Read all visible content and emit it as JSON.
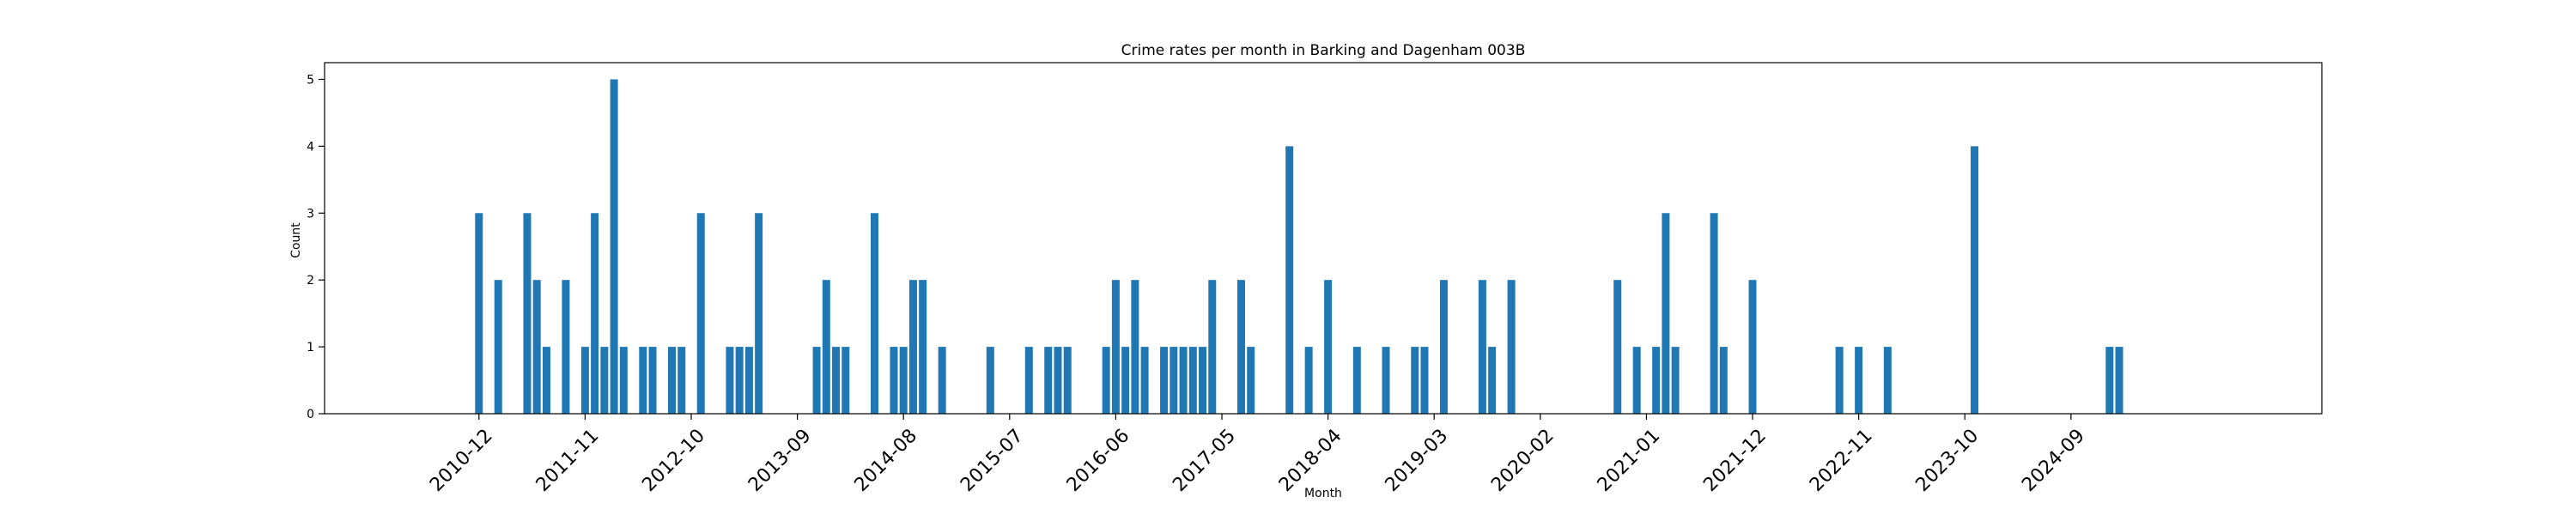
{
  "chart_data": {
    "type": "bar",
    "title": "Crime rates per month in Barking and Dagenham 003B",
    "xlabel": "Month",
    "ylabel": "Count",
    "ylim": [
      0,
      5.25
    ],
    "yticks": [
      0,
      1,
      2,
      3,
      4,
      5
    ],
    "xlim": [
      "2009-08",
      "2026-11"
    ],
    "xticks": [
      "2010-12",
      "2011-11",
      "2012-10",
      "2013-09",
      "2014-08",
      "2015-07",
      "2016-06",
      "2017-05",
      "2018-04",
      "2019-03",
      "2020-02",
      "2021-01",
      "2021-12",
      "2022-11",
      "2023-10",
      "2024-09"
    ],
    "bar_color": "#1f77b4",
    "grid": false,
    "legend": "none",
    "x": [
      "2010-12",
      "2011-02",
      "2011-05",
      "2011-06",
      "2011-07",
      "2011-09",
      "2011-11",
      "2011-12",
      "2012-01",
      "2012-02",
      "2012-03",
      "2012-05",
      "2012-06",
      "2012-08",
      "2012-09",
      "2012-11",
      "2013-02",
      "2013-03",
      "2013-04",
      "2013-05",
      "2013-11",
      "2013-12",
      "2014-01",
      "2014-02",
      "2014-05",
      "2014-07",
      "2014-08",
      "2014-09",
      "2014-10",
      "2014-12",
      "2015-05",
      "2015-09",
      "2015-11",
      "2015-12",
      "2016-01",
      "2016-05",
      "2016-06",
      "2016-07",
      "2016-08",
      "2016-09",
      "2016-11",
      "2016-12",
      "2017-01",
      "2017-02",
      "2017-03",
      "2017-04",
      "2017-07",
      "2017-08",
      "2017-12",
      "2018-02",
      "2018-04",
      "2018-07",
      "2018-10",
      "2019-01",
      "2019-02",
      "2019-04",
      "2019-08",
      "2019-09",
      "2019-11",
      "2020-10",
      "2020-12",
      "2021-02",
      "2021-03",
      "2021-04",
      "2021-08",
      "2021-09",
      "2021-12",
      "2022-09",
      "2022-11",
      "2023-02",
      "2023-11",
      "2025-01",
      "2025-02"
    ],
    "values": [
      3,
      2,
      3,
      2,
      1,
      2,
      1,
      3,
      1,
      5,
      1,
      1,
      1,
      1,
      1,
      3,
      1,
      1,
      1,
      3,
      1,
      2,
      1,
      1,
      3,
      1,
      1,
      2,
      2,
      1,
      1,
      1,
      1,
      1,
      1,
      1,
      2,
      1,
      2,
      1,
      1,
      1,
      1,
      1,
      1,
      2,
      2,
      1,
      4,
      1,
      2,
      1,
      1,
      1,
      1,
      2,
      2,
      1,
      2,
      2,
      1,
      1,
      3,
      1,
      3,
      1,
      2,
      1,
      1,
      1,
      4,
      1,
      1
    ]
  }
}
